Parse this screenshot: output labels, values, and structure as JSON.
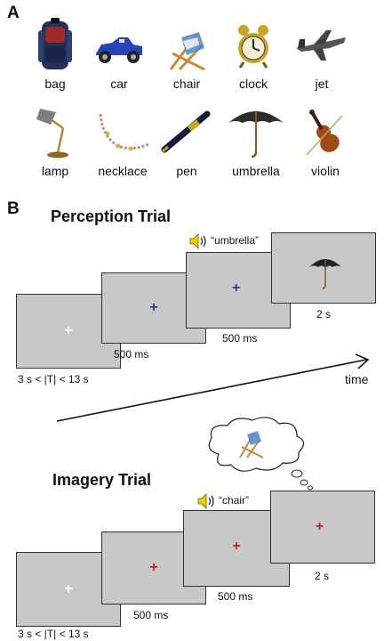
{
  "panelA": {
    "letter": "A",
    "objects": [
      {
        "label": "bag",
        "icon": "bag-icon"
      },
      {
        "label": "car",
        "icon": "car-icon"
      },
      {
        "label": "chair",
        "icon": "chair-icon"
      },
      {
        "label": "clock",
        "icon": "clock-icon"
      },
      {
        "label": "jet",
        "icon": "jet-icon"
      },
      {
        "label": "lamp",
        "icon": "lamp-icon"
      },
      {
        "label": "necklace",
        "icon": "necklace-icon"
      },
      {
        "label": "pen",
        "icon": "pen-icon"
      },
      {
        "label": "umbrella",
        "icon": "umbrella-icon"
      },
      {
        "label": "violin",
        "icon": "violin-icon"
      }
    ]
  },
  "panelB": {
    "letter": "B",
    "time_label": "time",
    "perception": {
      "title": "Perception Trial",
      "cue": "“umbrella”",
      "iti": "3 s < |T| < 13 s",
      "fix": "500 ms",
      "cue_dur": "500 ms",
      "stim_dur": "2 s",
      "fixation_color": "#2b3a9a"
    },
    "imagery": {
      "title": "Imagery Trial",
      "cue": "“chair”",
      "iti": "3 s < |T| < 13 s",
      "fix": "500 ms",
      "cue_dur": "500 ms",
      "imag_dur": "2 s",
      "fixation_color": "#c8202a"
    },
    "colors": {
      "screen": "#c8c8c8",
      "speaker": "#f0d000",
      "white_cross": "#ffffff"
    }
  }
}
